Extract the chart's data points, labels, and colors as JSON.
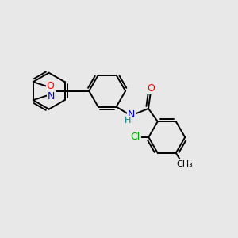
{
  "background_color": "#e8e8e8",
  "bond_color": "#000000",
  "figsize": [
    3.0,
    3.0
  ],
  "dpi": 100,
  "atoms": {
    "O": {
      "color": "#ff0000"
    },
    "N": {
      "color": "#0000cd"
    },
    "Cl": {
      "color": "#00aa00"
    },
    "C": {
      "color": "#000000"
    },
    "H": {
      "color": "#008080"
    }
  },
  "font_size": 9,
  "lw": 1.4
}
